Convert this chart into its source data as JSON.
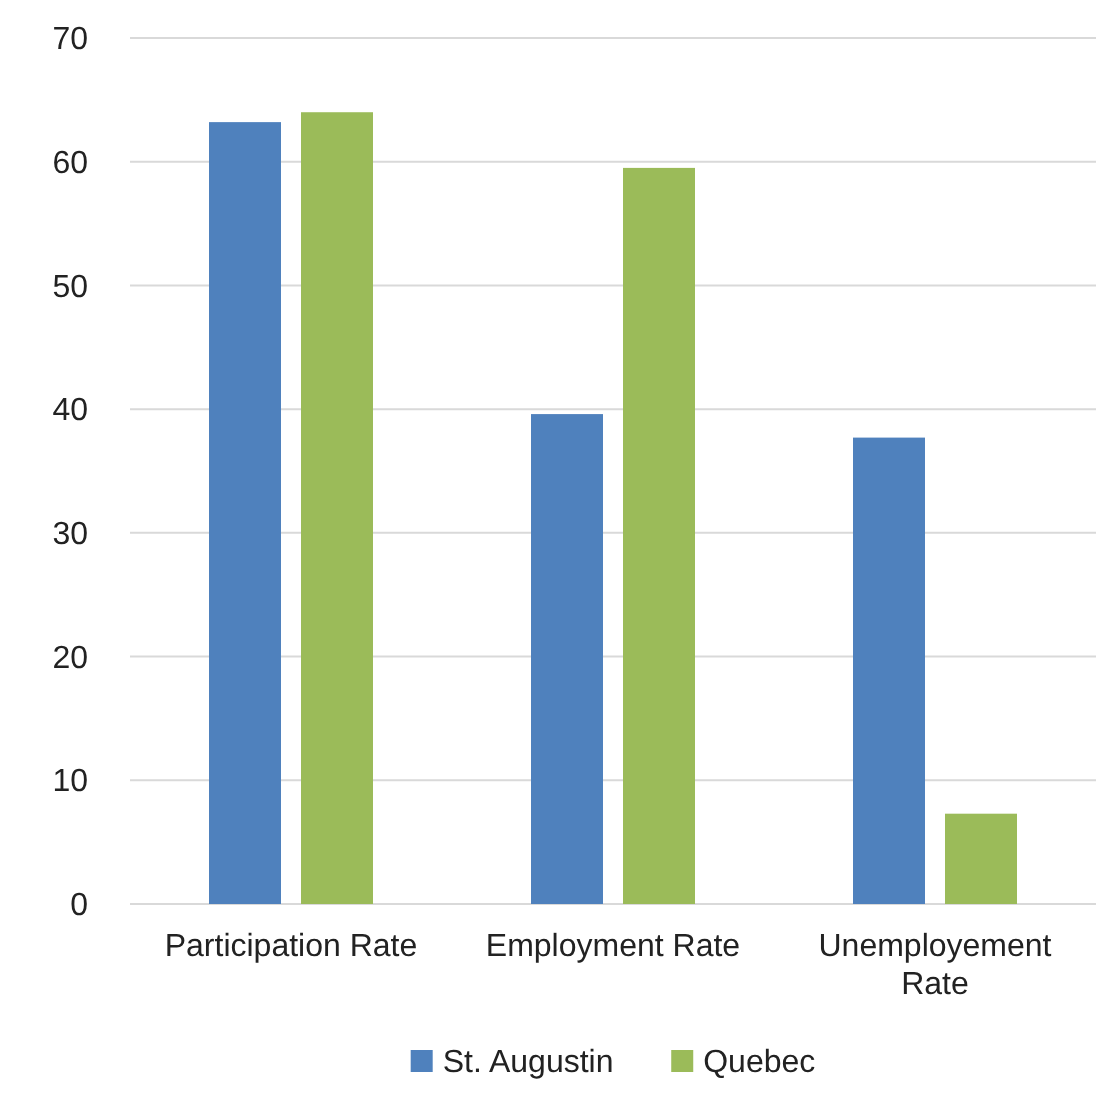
{
  "chart_data": {
    "type": "bar",
    "categories": [
      "Participation Rate",
      "Employment Rate",
      "Unemployement Rate"
    ],
    "series": [
      {
        "name": "St. Augustin",
        "color": "#4f81bd",
        "values": [
          63.2,
          39.6,
          37.7
        ]
      },
      {
        "name": "Quebec",
        "color": "#9bbb59",
        "values": [
          64.0,
          59.5,
          7.3
        ]
      }
    ],
    "ylim": [
      0,
      70
    ],
    "yticks": [
      0,
      10,
      20,
      30,
      40,
      50,
      60,
      70
    ],
    "grid": "y",
    "legend": "bottom"
  }
}
